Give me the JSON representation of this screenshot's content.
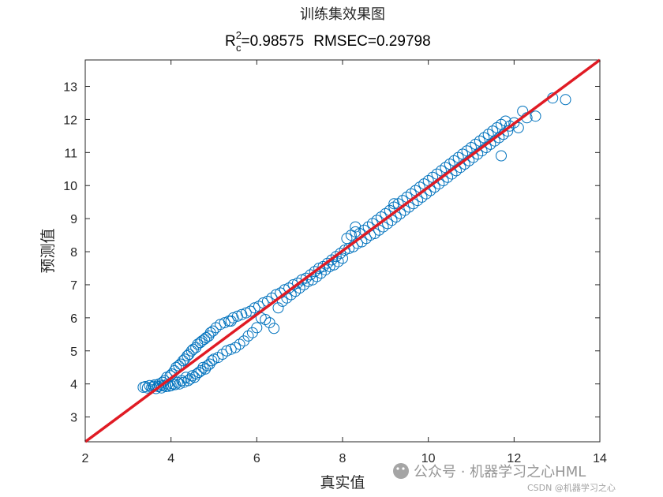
{
  "chart_data": {
    "type": "scatter",
    "title": "训练集效果图",
    "subtitle": {
      "r_prefix": "R",
      "r_sup": "2",
      "r_sub": "c",
      "r_value": "=0.98575",
      "rmsec": "RMSEC=0.29798"
    },
    "xlabel": "真实值",
    "ylabel": "预测值",
    "xlim": [
      2,
      14
    ],
    "ylim": [
      2.25,
      13.8
    ],
    "xticks": [
      2,
      4,
      6,
      8,
      10,
      12,
      14
    ],
    "yticks": [
      3,
      4,
      5,
      6,
      7,
      8,
      9,
      10,
      11,
      12,
      13
    ],
    "grid": false,
    "marker": "open-circle",
    "series_color": "#0072BD",
    "reference_line": {
      "x": [
        2,
        14
      ],
      "y": [
        2.25,
        13.8
      ],
      "color": "#E01B24"
    },
    "points": [
      [
        3.35,
        3.9
      ],
      [
        3.4,
        3.92
      ],
      [
        3.45,
        3.88
      ],
      [
        3.5,
        3.95
      ],
      [
        3.55,
        3.9
      ],
      [
        3.6,
        3.93
      ],
      [
        3.62,
        3.97
      ],
      [
        3.65,
        3.86
      ],
      [
        3.7,
        3.92
      ],
      [
        3.72,
        4.0
      ],
      [
        3.75,
        3.94
      ],
      [
        3.78,
        3.88
      ],
      [
        3.8,
        4.05
      ],
      [
        3.82,
        3.95
      ],
      [
        3.85,
        4.1
      ],
      [
        3.88,
        3.92
      ],
      [
        3.9,
        4.2
      ],
      [
        3.92,
        4.0
      ],
      [
        3.95,
        3.93
      ],
      [
        3.98,
        4.25
      ],
      [
        4.0,
        3.95
      ],
      [
        4.02,
        4.3
      ],
      [
        4.05,
        4.0
      ],
      [
        4.08,
        4.4
      ],
      [
        4.1,
        3.98
      ],
      [
        4.12,
        4.5
      ],
      [
        4.15,
        4.05
      ],
      [
        4.18,
        4.55
      ],
      [
        4.2,
        4.0
      ],
      [
        4.22,
        4.6
      ],
      [
        4.25,
        4.1
      ],
      [
        4.28,
        4.7
      ],
      [
        4.3,
        4.05
      ],
      [
        4.32,
        4.75
      ],
      [
        4.35,
        4.2
      ],
      [
        4.38,
        4.85
      ],
      [
        4.4,
        4.1
      ],
      [
        4.42,
        4.9
      ],
      [
        4.45,
        4.15
      ],
      [
        4.48,
        5.0
      ],
      [
        4.5,
        4.25
      ],
      [
        4.52,
        5.05
      ],
      [
        4.55,
        4.2
      ],
      [
        4.58,
        5.1
      ],
      [
        4.6,
        4.3
      ],
      [
        4.62,
        5.2
      ],
      [
        4.65,
        4.35
      ],
      [
        4.68,
        5.25
      ],
      [
        4.7,
        4.4
      ],
      [
        4.72,
        5.3
      ],
      [
        4.75,
        4.5
      ],
      [
        4.78,
        5.35
      ],
      [
        4.8,
        4.45
      ],
      [
        4.82,
        5.4
      ],
      [
        4.85,
        4.55
      ],
      [
        4.88,
        5.45
      ],
      [
        4.9,
        4.6
      ],
      [
        4.92,
        5.55
      ],
      [
        4.95,
        4.7
      ],
      [
        4.98,
        5.6
      ],
      [
        5.0,
        4.75
      ],
      [
        5.05,
        5.7
      ],
      [
        5.1,
        4.8
      ],
      [
        5.15,
        5.8
      ],
      [
        5.2,
        4.9
      ],
      [
        5.25,
        5.85
      ],
      [
        5.3,
        5.0
      ],
      [
        5.35,
        5.9
      ],
      [
        5.4,
        5.05
      ],
      [
        5.45,
        6.0
      ],
      [
        5.5,
        5.1
      ],
      [
        5.55,
        6.05
      ],
      [
        5.6,
        5.2
      ],
      [
        5.65,
        6.1
      ],
      [
        5.7,
        5.3
      ],
      [
        5.75,
        6.15
      ],
      [
        5.8,
        5.45
      ],
      [
        5.85,
        6.2
      ],
      [
        5.9,
        5.55
      ],
      [
        5.95,
        6.3
      ],
      [
        6.0,
        5.7
      ],
      [
        6.05,
        6.35
      ],
      [
        6.1,
        6.0
      ],
      [
        6.15,
        6.45
      ],
      [
        6.2,
        5.95
      ],
      [
        6.25,
        6.5
      ],
      [
        6.3,
        5.85
      ],
      [
        6.35,
        6.6
      ],
      [
        6.4,
        5.68
      ],
      [
        6.45,
        6.7
      ],
      [
        6.5,
        6.3
      ],
      [
        6.55,
        6.75
      ],
      [
        6.6,
        6.5
      ],
      [
        6.65,
        6.85
      ],
      [
        6.7,
        6.6
      ],
      [
        6.75,
        6.9
      ],
      [
        6.8,
        6.7
      ],
      [
        6.85,
        7.0
      ],
      [
        6.9,
        6.8
      ],
      [
        6.95,
        7.05
      ],
      [
        7.0,
        6.9
      ],
      [
        7.05,
        7.15
      ],
      [
        7.1,
        7.0
      ],
      [
        7.15,
        7.2
      ],
      [
        7.2,
        7.1
      ],
      [
        7.25,
        7.3
      ],
      [
        7.3,
        7.15
      ],
      [
        7.35,
        7.4
      ],
      [
        7.4,
        7.25
      ],
      [
        7.45,
        7.5
      ],
      [
        7.5,
        7.35
      ],
      [
        7.55,
        7.55
      ],
      [
        7.6,
        7.45
      ],
      [
        7.65,
        7.65
      ],
      [
        7.7,
        7.55
      ],
      [
        7.75,
        7.75
      ],
      [
        7.8,
        7.6
      ],
      [
        7.85,
        7.85
      ],
      [
        7.9,
        7.7
      ],
      [
        7.95,
        7.95
      ],
      [
        8.0,
        7.8
      ],
      [
        8.05,
        8.05
      ],
      [
        8.1,
        8.4
      ],
      [
        8.15,
        8.1
      ],
      [
        8.2,
        8.5
      ],
      [
        8.25,
        8.15
      ],
      [
        8.3,
        8.6
      ],
      [
        8.35,
        8.25
      ],
      [
        8.4,
        8.55
      ],
      [
        8.45,
        8.3
      ],
      [
        8.5,
        8.65
      ],
      [
        8.55,
        8.4
      ],
      [
        8.6,
        8.75
      ],
      [
        8.65,
        8.5
      ],
      [
        8.7,
        8.85
      ],
      [
        8.75,
        8.55
      ],
      [
        8.8,
        8.95
      ],
      [
        8.85,
        8.65
      ],
      [
        8.9,
        9.05
      ],
      [
        8.95,
        8.75
      ],
      [
        9.0,
        9.15
      ],
      [
        9.05,
        8.85
      ],
      [
        9.1,
        9.25
      ],
      [
        9.15,
        8.95
      ],
      [
        9.2,
        9.35
      ],
      [
        9.25,
        9.05
      ],
      [
        9.3,
        9.45
      ],
      [
        9.35,
        9.15
      ],
      [
        9.4,
        9.55
      ],
      [
        9.45,
        9.25
      ],
      [
        9.5,
        9.65
      ],
      [
        9.55,
        9.35
      ],
      [
        9.6,
        9.75
      ],
      [
        9.65,
        9.45
      ],
      [
        9.7,
        9.85
      ],
      [
        9.75,
        9.55
      ],
      [
        9.8,
        9.95
      ],
      [
        9.85,
        9.65
      ],
      [
        9.9,
        10.05
      ],
      [
        9.95,
        9.75
      ],
      [
        10.0,
        10.15
      ],
      [
        10.05,
        9.85
      ],
      [
        10.1,
        10.25
      ],
      [
        10.15,
        9.95
      ],
      [
        10.2,
        10.35
      ],
      [
        10.25,
        10.05
      ],
      [
        10.3,
        10.45
      ],
      [
        10.35,
        10.15
      ],
      [
        10.4,
        10.55
      ],
      [
        10.45,
        10.25
      ],
      [
        10.5,
        10.65
      ],
      [
        10.55,
        10.35
      ],
      [
        10.6,
        10.75
      ],
      [
        10.65,
        10.45
      ],
      [
        10.7,
        10.85
      ],
      [
        10.75,
        10.55
      ],
      [
        10.8,
        10.95
      ],
      [
        10.85,
        10.65
      ],
      [
        10.9,
        11.05
      ],
      [
        10.95,
        10.75
      ],
      [
        11.0,
        11.15
      ],
      [
        11.05,
        10.85
      ],
      [
        11.1,
        11.25
      ],
      [
        11.15,
        10.95
      ],
      [
        11.2,
        11.35
      ],
      [
        11.25,
        11.05
      ],
      [
        11.3,
        11.45
      ],
      [
        11.35,
        11.15
      ],
      [
        11.4,
        11.55
      ],
      [
        11.45,
        11.25
      ],
      [
        11.5,
        11.65
      ],
      [
        11.55,
        11.35
      ],
      [
        11.6,
        11.75
      ],
      [
        11.65,
        11.45
      ],
      [
        11.7,
        11.85
      ],
      [
        11.75,
        11.55
      ],
      [
        11.8,
        11.95
      ],
      [
        11.85,
        11.65
      ],
      [
        11.9,
        11.8
      ],
      [
        12.0,
        11.9
      ],
      [
        12.1,
        11.75
      ],
      [
        12.2,
        12.25
      ],
      [
        12.3,
        12.05
      ],
      [
        12.5,
        12.1
      ],
      [
        12.9,
        12.65
      ],
      [
        13.2,
        12.6
      ],
      [
        11.7,
        10.9
      ],
      [
        9.2,
        9.45
      ],
      [
        8.3,
        8.75
      ],
      [
        5.4,
        5.9
      ]
    ]
  },
  "watermark": {
    "brand": "公众号 · 机器学习之心HML",
    "sub": "CSDN @机器学习之心"
  }
}
